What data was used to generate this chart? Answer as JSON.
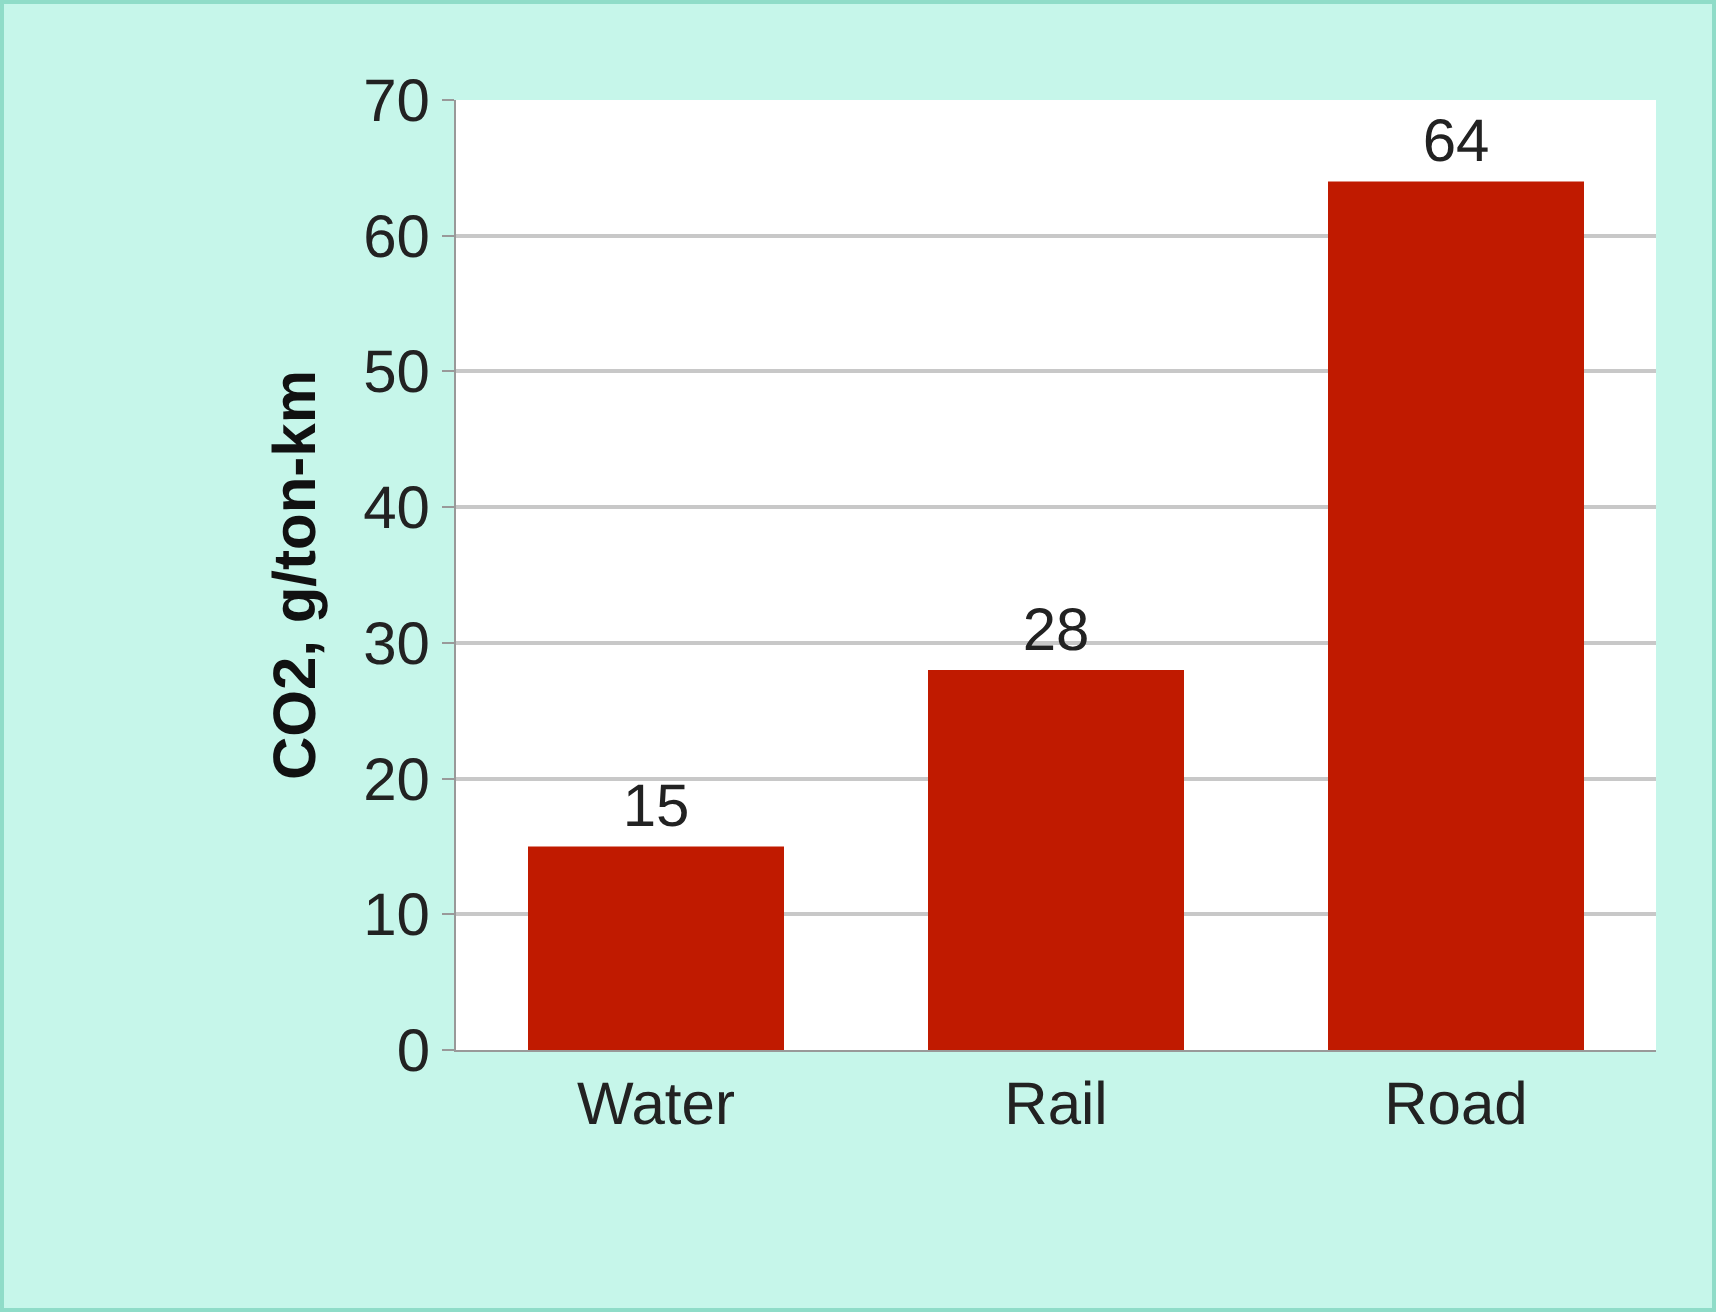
{
  "chart_data": {
    "type": "bar",
    "categories": [
      "Water",
      "Rail",
      "Road"
    ],
    "values": [
      15,
      28,
      64
    ],
    "color": "#c01a00",
    "ylabel": "CO2, g/ton-km",
    "ylim": [
      0,
      70
    ],
    "yticks": [
      0,
      10,
      20,
      30,
      40,
      50,
      60,
      70
    ],
    "grid": "y",
    "data_labels": true,
    "legend": false
  }
}
